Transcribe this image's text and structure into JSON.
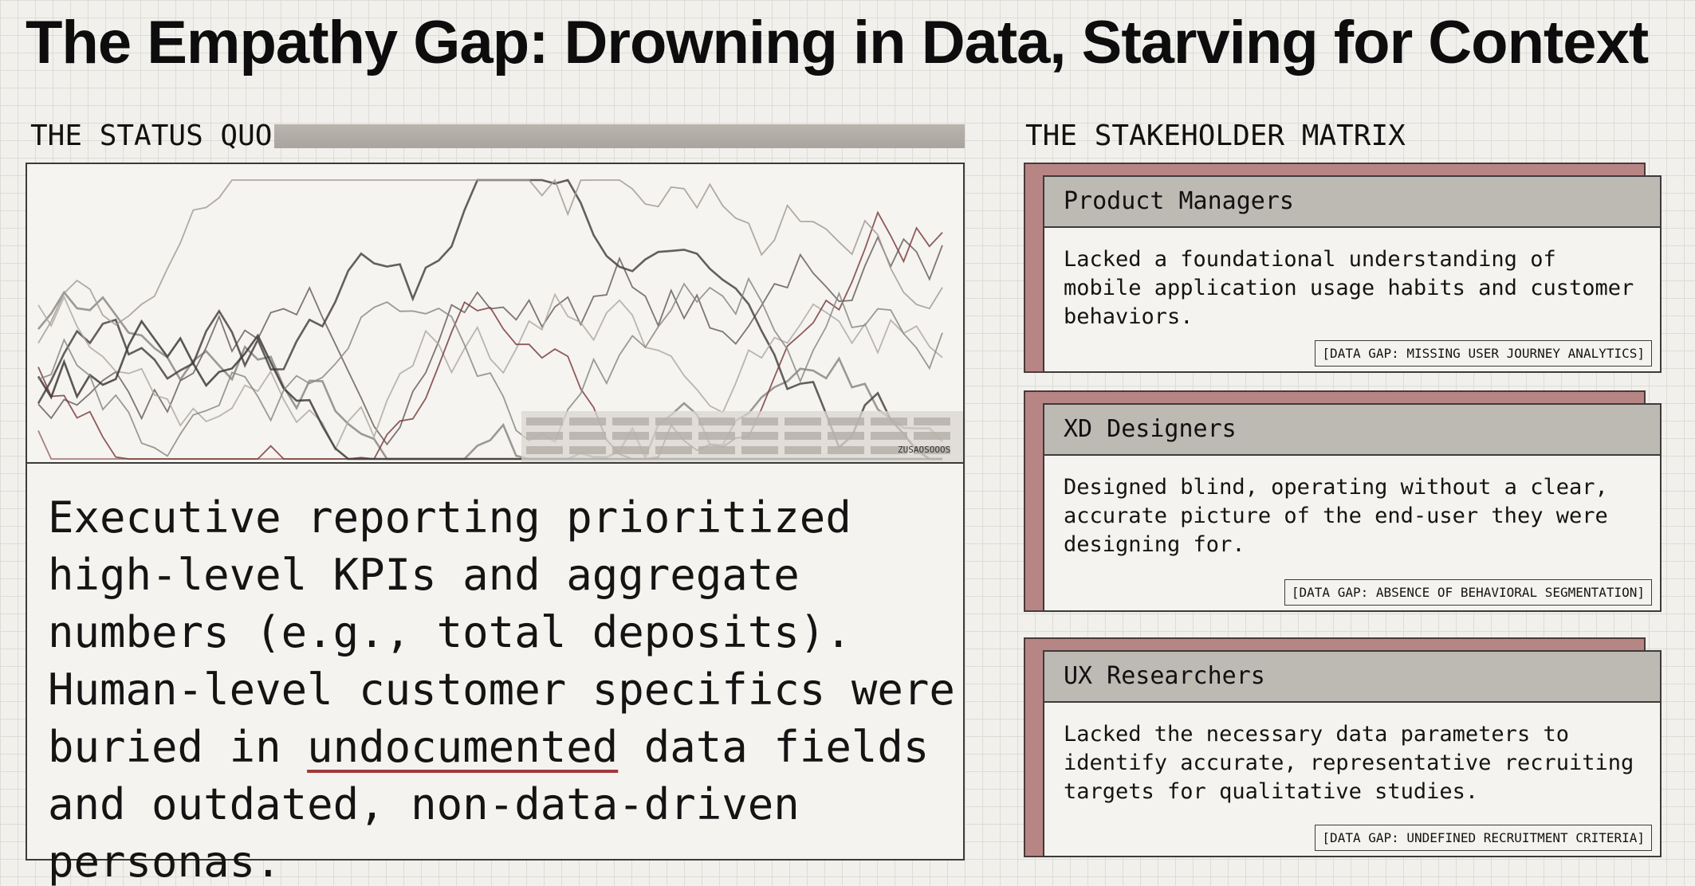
{
  "title": "The Empathy Gap: Drowning in Data, Starving for Context",
  "status_quo": {
    "label": "THE STATUS QUO",
    "table_code": "ZUSAOSOOOS",
    "text_before": "Executive reporting prioritized high-level KPIs and aggregate numbers (e.g., total deposits). Human-level customer specifics were buried in ",
    "text_highlight": "undocumented",
    "text_after": " data fields and outdated, non-data-driven personas."
  },
  "stakeholders": {
    "label": "THE STAKEHOLDER MATRIX",
    "cards": [
      {
        "name": "Product Managers",
        "body": "Lacked a foundational understanding of mobile application usage habits and customer behaviors.",
        "tag": "[DATA GAP: MISSING USER JOURNEY ANALYTICS]"
      },
      {
        "name": "XD Designers",
        "body": "Designed blind, operating without a clear, accurate picture of the end-user they were designing for.",
        "tag": "[DATA GAP: ABSENCE OF BEHAVIORAL SEGMENTATION]"
      },
      {
        "name": "UX Researchers",
        "body": "Lacked the necessary data parameters to identify accurate, representative recruiting targets for qualitative studies.",
        "tag": "[DATA GAP: UNDEFINED RECRUITMENT CRITERIA]"
      }
    ]
  },
  "colors": {
    "accent_red": "#a03a3a",
    "card_back": "#b88585",
    "header_gray": "#bdb9b3"
  }
}
